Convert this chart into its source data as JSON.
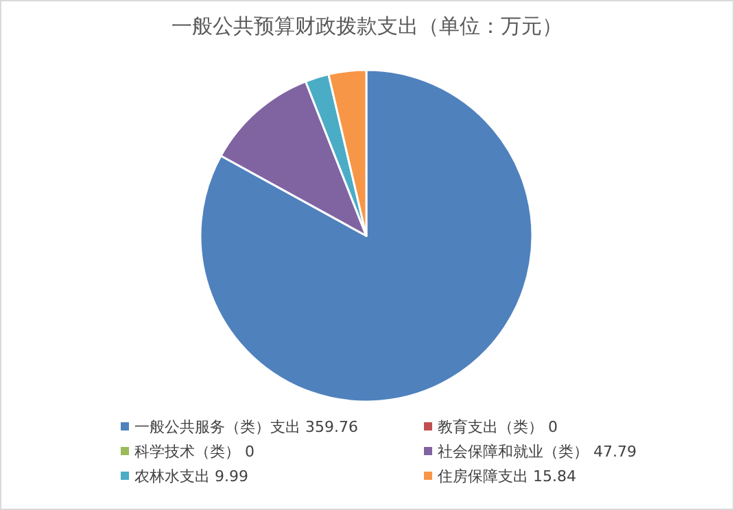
{
  "chart_data": {
    "type": "pie",
    "title": "一般公共预算财政拨款支出（单位：万元）",
    "categories": [
      "一般公共服务（类）支出 359.76",
      "教育支出（类） 0",
      "科学技术（类） 0",
      "社会保障和就业（类） 47.79",
      "农林水支出 9.99",
      "住房保障支出 15.84"
    ],
    "values": [
      359.76,
      0,
      0,
      47.79,
      9.99,
      15.84
    ],
    "colors": [
      "#4f81bd",
      "#c0504d",
      "#9bbb59",
      "#8064a2",
      "#4bacc6",
      "#f79646"
    ],
    "legend": "bottom"
  }
}
